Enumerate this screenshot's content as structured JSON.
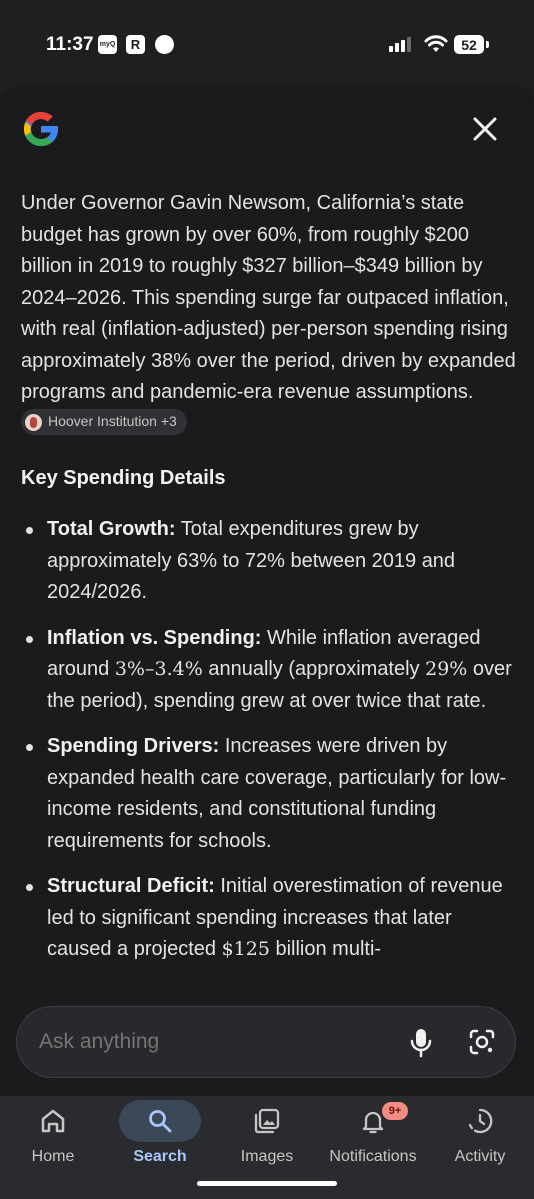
{
  "status_bar": {
    "time": "11:37",
    "icon1": "myQ",
    "icon2": "R",
    "battery": "52"
  },
  "overview": {
    "paragraph": "Under Governor Gavin Newsom, California’s state budget has grown by over 60%, from roughly $200 billion in 2019 to roughly $327 billion–$349 billion by 2024–2026. This spending surge far outpaced inflation, with real (inflation-adjusted) per-person spending rising approximately 38% over the period, driven by expanded programs and pandemic-era revenue assumptions.",
    "source_chip": "Hoover Institution +3"
  },
  "section": {
    "heading": "Key Spending Details",
    "bullets": [
      {
        "title": "Total Growth:",
        "text": " Total expenditures grew by approximately 63% to 72% between 2019 and 2024/2026."
      },
      {
        "title": "Inflation vs. Spending:",
        "pre": " While inflation averaged around ",
        "math1": "3%–3.4%",
        "mid": " annually (approximately ",
        "math2": "29%",
        "post": " over the period), spending grew at over twice that rate."
      },
      {
        "title": "Spending Drivers:",
        "text": " Increases were driven by expanded health care coverage, particularly for low-income residents, and constitutional funding requirements for schools."
      },
      {
        "title": "Structural Deficit:",
        "pre": " Initial overestimation of revenue led to significant spending increases that later caused a projected ",
        "math1": "$125",
        "post": " billion multi-"
      }
    ]
  },
  "ask": {
    "placeholder": "Ask anything"
  },
  "nav": {
    "items": [
      {
        "label": "Home",
        "icon": "home-icon"
      },
      {
        "label": "Search",
        "icon": "search-icon",
        "active": true
      },
      {
        "label": "Images",
        "icon": "images-icon"
      },
      {
        "label": "Notifications",
        "icon": "bell-icon",
        "badge": "9+"
      },
      {
        "label": "Activity",
        "icon": "activity-icon"
      }
    ]
  },
  "colors": {
    "background": "#1b1b1d",
    "accent": "#a8c7fa",
    "badge": "#f28b82"
  }
}
